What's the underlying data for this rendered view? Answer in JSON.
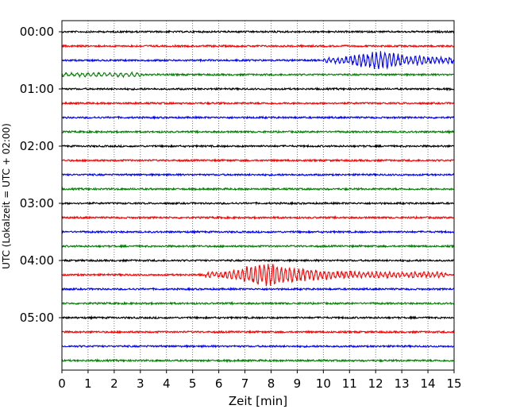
{
  "chart_data": {
    "type": "line",
    "title": "",
    "xlabel": "Zeit  [min]",
    "ylabel": "UTC (Lokalzeit = UTC + 02:00)",
    "xlim": [
      0,
      15
    ],
    "x_ticks": [
      "0",
      "1",
      "2",
      "3",
      "4",
      "5",
      "6",
      "7",
      "8",
      "9",
      "10",
      "11",
      "12",
      "13",
      "14",
      "15"
    ],
    "y_tick_labels": [
      "00:00",
      "01:00",
      "02:00",
      "03:00",
      "04:00",
      "05:00"
    ],
    "grid": "vertical dotted",
    "rows_per_hour": 4,
    "minutes_per_row": 15,
    "trace_colors": [
      "#000000",
      "#ff0000",
      "#0000ff",
      "#008000"
    ],
    "n_traces": 24,
    "events": [
      {
        "trace_start": "00:30",
        "x_start_min": 10.0,
        "x_end_min": 15.0,
        "peak_min": 12.2,
        "color": "#0000ff"
      },
      {
        "trace_start": "04:15",
        "x_start_min": 5.5,
        "x_end_min": 14.7,
        "peak_min": 7.9,
        "color": "#ff0000"
      }
    ]
  }
}
